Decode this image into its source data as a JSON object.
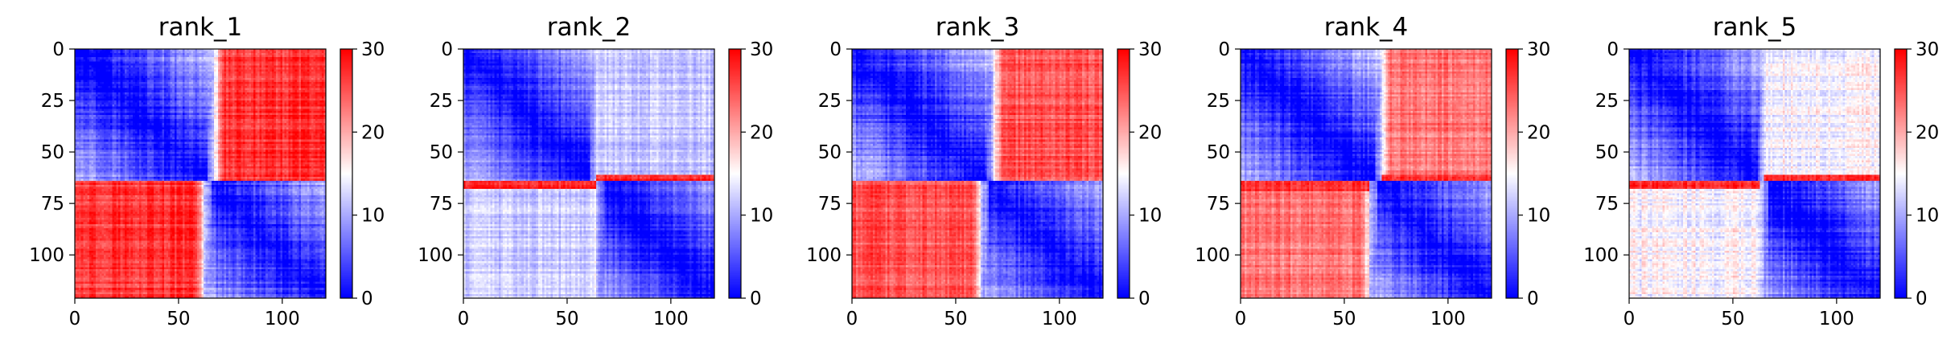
{
  "chart_data": [
    {
      "type": "heatmap",
      "title": "rank_1",
      "colormap": "bwr",
      "vlim": [
        0,
        30
      ],
      "xlim": [
        0,
        121
      ],
      "ylim": [
        121,
        0
      ],
      "xticks": [
        0,
        50,
        100
      ],
      "yticks": [
        0,
        25,
        50,
        75,
        100
      ],
      "cbar_ticks": [
        0,
        10,
        20,
        30
      ],
      "block_boundary_row": 64,
      "block_boundary_col_top": 67,
      "block_boundary_col_bottom": 62,
      "diagonal_value": 0,
      "opposite_block_value": 27,
      "high_band_rows": [],
      "noise": 1.8
    },
    {
      "type": "heatmap",
      "title": "rank_2",
      "colormap": "bwr",
      "vlim": [
        0,
        30
      ],
      "xlim": [
        0,
        121
      ],
      "ylim": [
        121,
        0
      ],
      "xticks": [
        0,
        50,
        100
      ],
      "yticks": [
        0,
        25,
        50,
        75,
        100
      ],
      "cbar_ticks": [
        0,
        10,
        20,
        30
      ],
      "block_boundary_row": 64,
      "block_boundary_col_top": 64,
      "block_boundary_col_bottom": 64,
      "diagonal_value": 0,
      "opposite_block_value": 12,
      "high_band_rows": [
        61,
        67
      ],
      "noise": 1.6
    },
    {
      "type": "heatmap",
      "title": "rank_3",
      "colormap": "bwr",
      "vlim": [
        0,
        30
      ],
      "xlim": [
        0,
        121
      ],
      "ylim": [
        121,
        0
      ],
      "xticks": [
        0,
        50,
        100
      ],
      "yticks": [
        0,
        25,
        50,
        75,
        100
      ],
      "cbar_ticks": [
        0,
        10,
        20,
        30
      ],
      "block_boundary_row": 64,
      "block_boundary_col_top": 68,
      "block_boundary_col_bottom": 62,
      "diagonal_value": 0,
      "opposite_block_value": 25,
      "high_band_rows": [],
      "noise": 1.8
    },
    {
      "type": "heatmap",
      "title": "rank_4",
      "colormap": "bwr",
      "vlim": [
        0,
        30
      ],
      "xlim": [
        0,
        121
      ],
      "ylim": [
        121,
        0
      ],
      "xticks": [
        0,
        50,
        100
      ],
      "yticks": [
        0,
        25,
        50,
        75,
        100
      ],
      "cbar_ticks": [
        0,
        10,
        20,
        30
      ],
      "block_boundary_row": 64,
      "block_boundary_col_top": 68,
      "block_boundary_col_bottom": 62,
      "diagonal_value": 0,
      "opposite_block_value": 23,
      "high_band_rows": [
        61,
        68
      ],
      "noise": 1.8
    },
    {
      "type": "heatmap",
      "title": "rank_5",
      "colormap": "bwr",
      "vlim": [
        0,
        30
      ],
      "xlim": [
        0,
        121
      ],
      "ylim": [
        121,
        0
      ],
      "xticks": [
        0,
        50,
        100
      ],
      "yticks": [
        0,
        25,
        50,
        75,
        100
      ],
      "cbar_ticks": [
        0,
        10,
        20,
        30
      ],
      "block_boundary_row": 64,
      "block_boundary_col_top": 65,
      "block_boundary_col_bottom": 63,
      "diagonal_value": 0,
      "opposite_block_value": 15,
      "high_band_rows": [
        61,
        67
      ],
      "noise": 1.8
    }
  ]
}
